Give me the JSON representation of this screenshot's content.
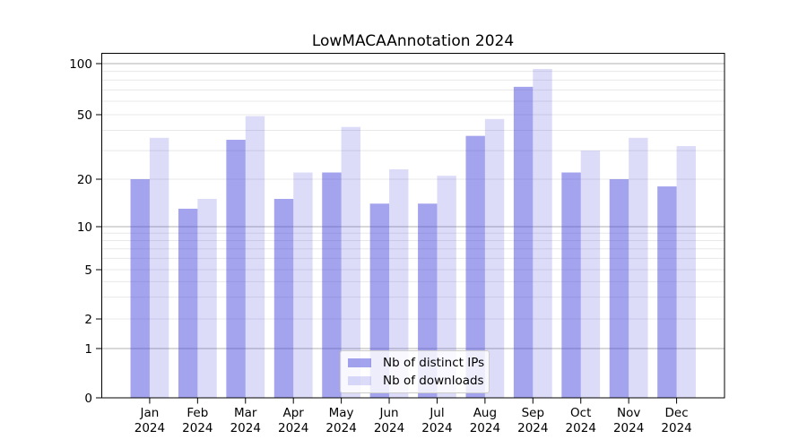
{
  "figure": {
    "title": "LowMACAAnnotation 2024"
  },
  "chart_data": {
    "type": "bar",
    "title": "LowMACAAnnotation 2024",
    "xlabel": "",
    "ylabel": "",
    "yscale": "log-like (symlog, 0 shown at baseline)",
    "grid": "on",
    "legend_position": "lower center",
    "year": "2024",
    "months": [
      "Jan",
      "Feb",
      "Mar",
      "Apr",
      "May",
      "Jun",
      "Jul",
      "Aug",
      "Sep",
      "Oct",
      "Nov",
      "Dec"
    ],
    "categories": [
      "Jan 2024",
      "Feb 2024",
      "Mar 2024",
      "Apr 2024",
      "May 2024",
      "Jun 2024",
      "Jul 2024",
      "Aug 2024",
      "Sep 2024",
      "Oct 2024",
      "Nov 2024",
      "Dec 2024"
    ],
    "series": [
      {
        "name": "Nb of distinct IPs",
        "values": [
          20,
          13,
          35,
          15,
          22,
          14,
          14,
          37,
          73,
          22,
          20,
          18
        ],
        "color": "rgba(69,69,221,0.49)"
      },
      {
        "name": "Nb of downloads",
        "values": [
          36,
          15,
          49,
          22,
          42,
          23,
          21,
          47,
          93,
          30,
          36,
          32
        ],
        "color": "rgba(69,69,221,0.19)"
      }
    ],
    "y_axis": {
      "ticks": [
        {
          "value": 100,
          "label": "100"
        },
        {
          "value": 50,
          "label": "50"
        },
        {
          "value": 20,
          "label": "20"
        },
        {
          "value": 10,
          "label": "10"
        },
        {
          "value": 5,
          "label": "5"
        },
        {
          "value": 2,
          "label": "2"
        },
        {
          "value": 1,
          "label": "1"
        },
        {
          "value": 0,
          "label": "0"
        }
      ],
      "major_gridlines": [
        100,
        10,
        1
      ],
      "minor_gridlines": [
        90,
        80,
        70,
        60,
        50,
        40,
        30,
        20,
        9,
        8,
        7,
        6,
        5,
        4,
        3,
        2
      ],
      "range": [
        0,
        115
      ]
    },
    "colors": {
      "bar_dark": "rgba(69,69,221,0.49)",
      "bar_light": "rgba(69,69,221,0.19)",
      "major_gridline": "#b0b0b0",
      "minor_gridline": "#e8e8e8",
      "axis": "#000000",
      "text": "#000000",
      "legend_border": "#cccccc",
      "legend_background": "rgba(255,255,255,0.8)"
    }
  }
}
